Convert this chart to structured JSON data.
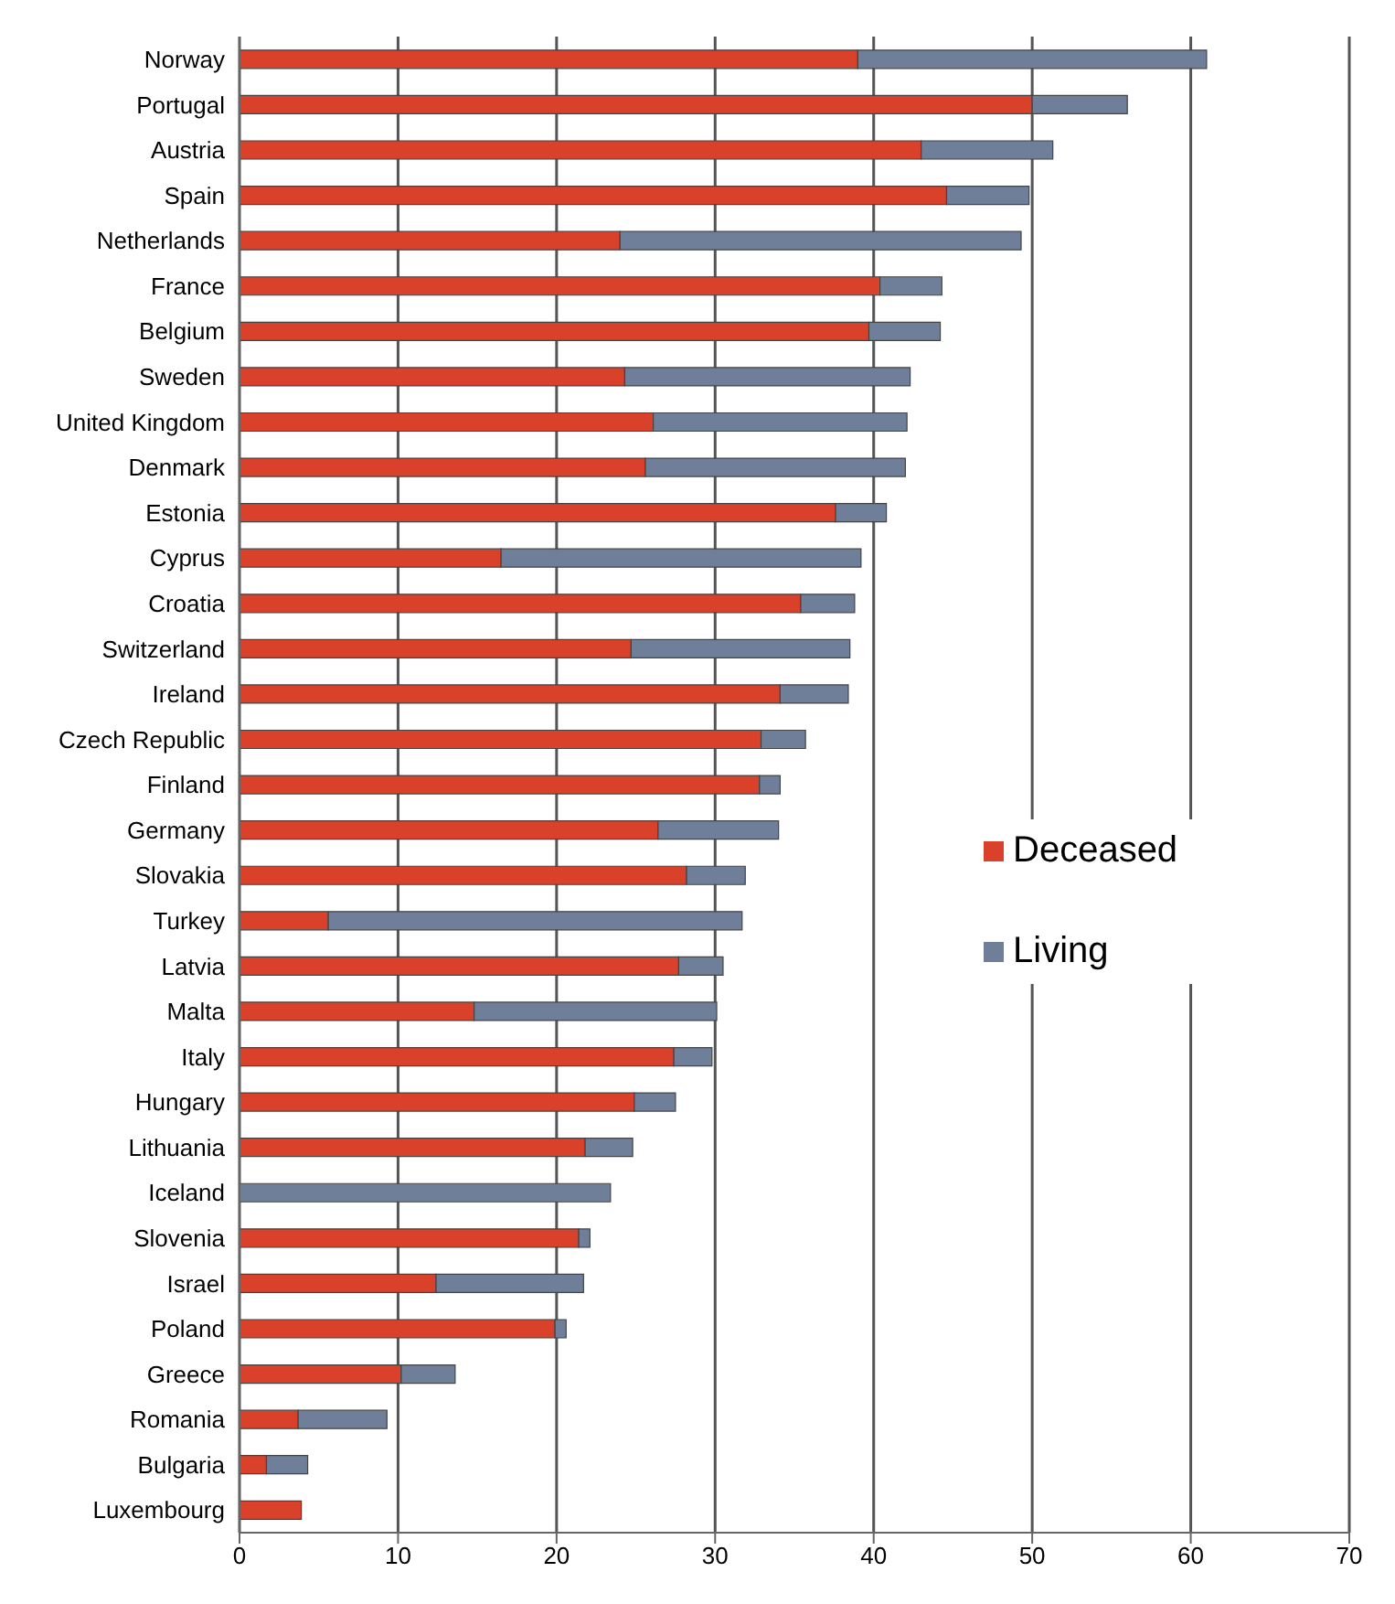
{
  "chart_data": {
    "type": "bar",
    "orientation": "horizontal",
    "stacked": true,
    "categories": [
      "Norway",
      "Portugal",
      "Austria",
      "Spain",
      "Netherlands",
      "France",
      "Belgium",
      "Sweden",
      "United Kingdom",
      "Denmark",
      "Estonia",
      "Cyprus",
      "Croatia",
      "Switzerland",
      "Ireland",
      "Czech Republic",
      "Finland",
      "Germany",
      "Slovakia",
      "Turkey",
      "Latvia",
      "Malta",
      "Italy",
      "Hungary",
      "Lithuania",
      "Iceland",
      "Slovenia",
      "Israel",
      "Poland",
      "Greece",
      "Romania",
      "Bulgaria",
      "Luxembourg"
    ],
    "series": [
      {
        "name": "Deceased",
        "color": "#d9412b",
        "values": [
          39,
          50,
          43,
          44.6,
          24,
          40.4,
          39.7,
          24.3,
          26.1,
          25.6,
          37.6,
          16.5,
          35.4,
          24.7,
          34.1,
          32.9,
          32.8,
          26.4,
          28.2,
          5.6,
          27.7,
          14.8,
          27.4,
          24.9,
          21.8,
          0,
          21.4,
          12.4,
          19.9,
          10.2,
          3.7,
          1.7,
          3.9
        ]
      },
      {
        "name": "Living",
        "color": "#6f7f9a",
        "values": [
          22,
          6,
          8.3,
          5.2,
          25.3,
          3.9,
          4.5,
          18,
          16,
          16.4,
          3.2,
          22.7,
          3.4,
          13.8,
          4.3,
          2.8,
          1.3,
          7.6,
          3.7,
          26.1,
          2.8,
          15.3,
          2.4,
          2.6,
          3,
          23.4,
          0.7,
          9.3,
          0.7,
          3.4,
          5.6,
          2.6,
          0
        ]
      }
    ],
    "xlim": [
      0,
      70
    ],
    "xticks": [
      0,
      10,
      20,
      30,
      40,
      50,
      60,
      70
    ],
    "grid": "x",
    "legend": "right"
  }
}
